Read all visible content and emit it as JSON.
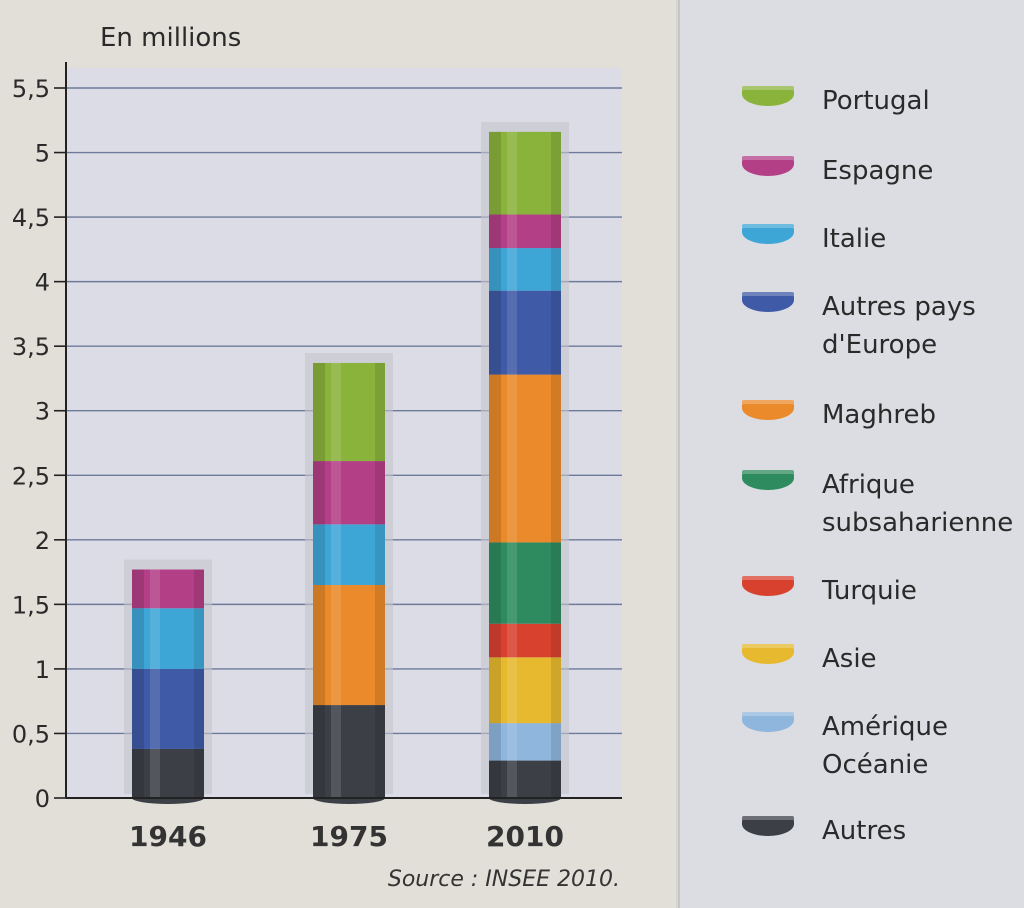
{
  "chart_data": {
    "type": "bar",
    "stacked": true,
    "unit_label": "En millions",
    "source": "Source : INSEE 2010.",
    "categories": [
      "1946",
      "1975",
      "2010"
    ],
    "ylim": [
      0,
      5.5
    ],
    "yticks": [
      "0",
      "0,5",
      "1",
      "1,5",
      "2",
      "2,5",
      "3",
      "3,5",
      "4",
      "4,5",
      "5",
      "5,5"
    ],
    "grid": true,
    "legend_position": "right",
    "series": [
      {
        "name": "Autres",
        "color": "#3d3f47",
        "values": [
          0.38,
          0.72,
          0.29
        ]
      },
      {
        "name": "Amérique Océanie",
        "color": "#8fb6dc",
        "values": [
          0,
          0,
          0.29
        ]
      },
      {
        "name": "Asie",
        "color": "#e6b92e",
        "values": [
          0,
          0,
          0.51
        ]
      },
      {
        "name": "Turquie",
        "color": "#d9412f",
        "values": [
          0,
          0,
          0.26
        ]
      },
      {
        "name": "Afrique subsaharienne",
        "color": "#2e8b5f",
        "values": [
          0,
          0,
          0.63
        ]
      },
      {
        "name": "Maghreb",
        "color": "#ea8a2a",
        "values": [
          0,
          0.93,
          1.3
        ]
      },
      {
        "name": "Autres pays d'Europe",
        "color": "#3f5aa6",
        "values": [
          0.62,
          0,
          0.65
        ]
      },
      {
        "name": "Italie",
        "color": "#3ea6d6",
        "values": [
          0.47,
          0.47,
          0.33
        ]
      },
      {
        "name": "Espagne",
        "color": "#b33f86",
        "values": [
          0.3,
          0.49,
          0.26
        ]
      },
      {
        "name": "Portugal",
        "color": "#8ab33c",
        "values": [
          0,
          0.76,
          0.64
        ]
      }
    ]
  },
  "legend": [
    {
      "label": "Portugal",
      "color": "#8ab33c"
    },
    {
      "label": "Espagne",
      "color": "#b33f86"
    },
    {
      "label": "Italie",
      "color": "#3ea6d6"
    },
    {
      "label": "Autres pays\nd'Europe",
      "color": "#3f5aa6"
    },
    {
      "label": "Maghreb",
      "color": "#ea8a2a"
    },
    {
      "label": "Afrique\nsubsaharienne",
      "color": "#2e8b5f"
    },
    {
      "label": "Turquie",
      "color": "#d9412f"
    },
    {
      "label": "Asie",
      "color": "#e6b92e"
    },
    {
      "label": "Amérique\nOcéanie",
      "color": "#8fb6dc"
    },
    {
      "label": "Autres",
      "color": "#3d3f47"
    }
  ]
}
